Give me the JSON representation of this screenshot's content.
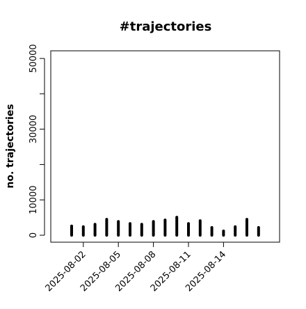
{
  "chart_data": {
    "type": "bar",
    "title": "#trajectories",
    "y_label": "no. trajectories",
    "x": [
      "2025-08-01",
      "2025-08-02",
      "2025-08-03",
      "2025-08-04",
      "2025-08-05",
      "2025-08-06",
      "2025-08-07",
      "2025-08-08",
      "2025-08-09",
      "2025-08-10",
      "2025-08-11",
      "2025-08-12",
      "2025-08-13",
      "2025-08-14",
      "2025-08-15",
      "2025-08-16",
      "2025-08-17"
    ],
    "values": [
      2600,
      2400,
      3100,
      4500,
      3900,
      3300,
      3100,
      3900,
      4300,
      5100,
      3300,
      4100,
      2200,
      1200,
      2400,
      4500,
      2200
    ],
    "color": "#000000",
    "xticks": [
      "2025-08-02",
      "2025-08-05",
      "2025-08-08",
      "2025-08-11",
      "2025-08-14"
    ],
    "ylim": [
      0,
      50000
    ],
    "yticks": [
      0,
      10000,
      {
        "value": 20000,
        "label": null
      },
      30000,
      {
        "value": 40000,
        "label": null
      },
      50000
    ]
  }
}
